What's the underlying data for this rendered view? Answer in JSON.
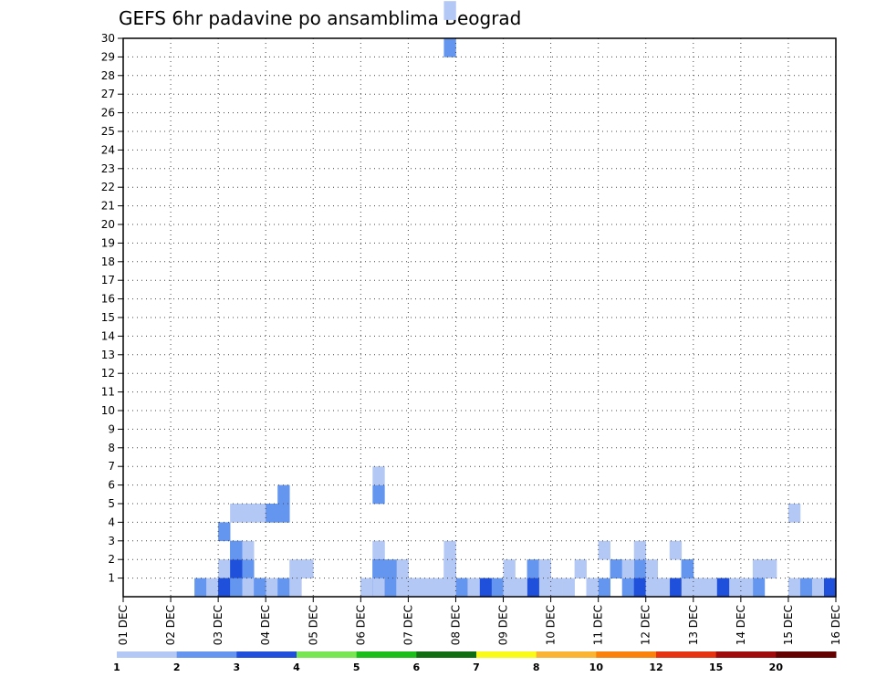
{
  "chart_data": {
    "type": "heatmap",
    "title": "GEFS 6hr padavine po ansamblima Beograd",
    "x_tick_labels": [
      "01 DEC",
      "02 DEC",
      "03 DEC",
      "04 DEC",
      "05 DEC",
      "06 DEC",
      "07 DEC",
      "08 DEC",
      "09 DEC",
      "10 DEC",
      "11 DEC",
      "12 DEC",
      "13 DEC",
      "14 DEC",
      "15 DEC",
      "16 DEC"
    ],
    "y_tick_labels": [
      "1",
      "2",
      "3",
      "4",
      "5",
      "6",
      "7",
      "8",
      "9",
      "10",
      "11",
      "12",
      "13",
      "14",
      "15",
      "16",
      "17",
      "18",
      "19",
      "20",
      "21",
      "22",
      "23",
      "24",
      "25",
      "26",
      "27",
      "28",
      "29",
      "30"
    ],
    "ensemble_range": [
      0,
      30
    ],
    "steps_per_day": 4,
    "grid": true,
    "legend": {
      "placement": "bottom",
      "labels": [
        "1",
        "2",
        "3",
        "4",
        "5",
        "6",
        "7",
        "8",
        "10",
        "12",
        "15",
        "20"
      ],
      "colors": [
        "#b4c8f5",
        "#6496f0",
        "#1e50dc",
        "#78e650",
        "#19be19",
        "#0f6e0f",
        "#fafa19",
        "#fab432",
        "#fa820a",
        "#e6320f",
        "#a00a0a",
        "#640000"
      ]
    },
    "cells": [
      [
        8,
        3,
        2
      ],
      [
        9,
        4,
        1
      ],
      [
        10,
        4,
        1
      ],
      [
        11,
        4,
        1
      ],
      [
        12,
        4,
        2
      ],
      [
        13,
        4,
        2
      ],
      [
        13,
        5,
        2
      ],
      [
        21,
        5,
        2
      ],
      [
        21,
        6,
        1
      ],
      [
        27,
        29,
        2
      ],
      [
        27,
        31,
        1
      ],
      [
        56,
        4,
        1
      ],
      [
        8,
        0,
        3
      ],
      [
        9,
        0,
        4
      ],
      [
        10,
        1,
        3
      ],
      [
        11,
        0,
        2
      ],
      [
        12,
        0,
        1
      ],
      [
        13,
        0,
        1
      ],
      [
        14,
        1,
        1
      ],
      [
        15,
        1,
        1
      ],
      [
        20,
        0,
        2
      ],
      [
        21,
        0,
        3
      ],
      [
        22,
        0,
        1
      ],
      [
        23,
        0,
        1
      ],
      [
        27,
        1,
        3
      ],
      [
        28,
        0,
        3
      ],
      [
        32,
        0,
        2
      ],
      [
        33,
        0,
        2
      ],
      [
        39,
        0,
        2
      ],
      [
        40,
        2,
        1
      ],
      [
        43,
        0,
        2
      ],
      [
        44,
        0,
        3
      ],
      [
        49,
        0,
        1
      ],
      [
        54,
        1,
        1
      ],
      [
        8,
        0,
        2
      ],
      [
        9,
        0,
        2
      ],
      [
        10,
        1,
        2
      ],
      [
        11,
        0,
        2
      ],
      [
        21,
        2,
        1
      ],
      [
        22,
        0,
        2
      ],
      [
        23,
        1,
        1
      ],
      [
        24,
        0,
        1
      ],
      [
        28,
        0,
        1
      ],
      [
        31,
        0,
        2
      ],
      [
        32,
        1,
        1
      ],
      [
        34,
        0,
        1
      ],
      [
        35,
        1,
        1
      ],
      [
        46,
        2,
        1
      ],
      [
        47,
        1,
        2
      ],
      [
        48,
        0,
        1
      ],
      [
        8,
        0,
        3
      ],
      [
        9,
        1,
        2
      ],
      [
        11,
        0,
        2
      ],
      [
        21,
        2,
        1
      ],
      [
        23,
        0,
        1
      ],
      [
        27,
        1,
        2
      ],
      [
        28,
        0,
        2
      ],
      [
        32,
        0,
        1
      ],
      [
        34,
        1,
        2
      ],
      [
        35,
        1,
        1
      ],
      [
        39,
        0,
        1
      ],
      [
        41,
        1,
        2
      ],
      [
        43,
        0,
        1
      ],
      [
        8,
        0,
        1
      ],
      [
        9,
        0,
        2
      ],
      [
        21,
        1,
        2
      ],
      [
        22,
        0,
        1
      ],
      [
        27,
        2,
        1
      ],
      [
        28,
        0,
        1
      ],
      [
        8,
        0,
        1
      ],
      [
        9,
        0,
        2
      ],
      [
        11,
        0,
        2
      ],
      [
        22,
        0,
        2
      ],
      [
        23,
        0,
        1
      ],
      [
        28,
        0,
        1
      ],
      [
        43,
        1,
        1
      ],
      [
        47,
        1,
        2
      ],
      [
        8,
        0,
        2
      ],
      [
        9,
        0,
        1
      ],
      [
        21,
        0,
        2
      ],
      [
        22,
        0,
        2
      ],
      [
        23,
        0,
        3
      ],
      [
        24,
        0,
        1
      ],
      [
        27,
        0,
        1
      ],
      [
        8,
        0,
        2
      ],
      [
        9,
        1,
        2
      ],
      [
        21,
        1,
        3
      ],
      [
        22,
        0,
        3
      ],
      [
        23,
        1,
        1
      ],
      [
        24,
        0,
        1
      ],
      [
        29,
        0,
        1
      ],
      [
        30,
        0,
        2
      ],
      [
        36,
        0,
        1
      ],
      [
        43,
        1,
        2
      ],
      [
        44,
        1,
        1
      ],
      [
        46,
        0,
        1
      ],
      [
        47,
        0,
        1
      ],
      [
        48,
        0,
        1
      ],
      [
        54,
        1,
        1
      ],
      [
        8,
        0,
        2
      ],
      [
        9,
        0,
        1
      ],
      [
        20,
        0,
        1
      ],
      [
        21,
        0,
        2
      ],
      [
        22,
        0,
        1
      ],
      [
        33,
        0,
        1
      ],
      [
        35,
        0,
        1
      ],
      [
        8,
        0,
        1
      ],
      [
        9,
        1,
        2
      ],
      [
        13,
        0,
        2
      ],
      [
        14,
        0,
        2
      ],
      [
        21,
        0,
        2
      ],
      [
        22,
        0,
        3
      ],
      [
        24,
        0,
        1
      ],
      [
        27,
        1,
        1
      ],
      [
        28,
        0,
        2
      ],
      [
        29,
        0,
        1
      ],
      [
        37,
        0,
        1
      ],
      [
        40,
        0,
        2
      ],
      [
        41,
        1,
        2
      ],
      [
        42,
        0,
        2
      ],
      [
        43,
        0,
        3
      ],
      [
        44,
        0,
        1
      ],
      [
        45,
        0,
        1
      ],
      [
        53,
        1,
        1
      ],
      [
        8,
        1,
        1
      ],
      [
        9,
        2,
        2
      ],
      [
        21,
        1,
        2
      ],
      [
        22,
        0,
        3
      ],
      [
        23,
        1,
        1
      ],
      [
        24,
        0,
        1
      ],
      [
        27,
        0,
        1
      ],
      [
        29,
        0,
        1
      ],
      [
        30,
        0,
        3
      ],
      [
        34,
        0,
        3
      ],
      [
        46,
        0,
        3
      ],
      [
        47,
        0,
        1
      ],
      [
        53,
        0,
        2
      ],
      [
        8,
        0,
        2
      ],
      [
        9,
        1,
        3
      ],
      [
        10,
        2,
        1
      ],
      [
        21,
        0,
        1
      ],
      [
        22,
        0,
        2
      ],
      [
        24,
        0,
        2
      ],
      [
        33,
        0,
        1
      ],
      [
        47,
        1,
        2
      ],
      [
        48,
        0,
        1
      ],
      [
        6,
        0,
        2
      ],
      [
        7,
        0,
        1
      ],
      [
        8,
        0,
        1
      ],
      [
        9,
        2,
        2
      ],
      [
        20,
        0,
        1
      ],
      [
        21,
        0,
        2
      ],
      [
        22,
        1,
        2
      ],
      [
        23,
        0,
        1
      ],
      [
        24,
        0,
        1
      ],
      [
        29,
        0,
        1
      ],
      [
        32,
        0,
        1
      ],
      [
        38,
        1,
        1
      ],
      [
        45,
        0,
        1
      ],
      [
        48,
        0,
        1
      ],
      [
        52,
        0,
        1
      ],
      [
        8,
        0,
        2
      ],
      [
        9,
        0,
        3
      ],
      [
        10,
        0,
        1
      ],
      [
        14,
        0,
        1
      ],
      [
        20,
        0,
        1
      ],
      [
        21,
        0,
        3
      ],
      [
        23,
        0,
        1
      ],
      [
        26,
        0,
        1
      ],
      [
        39,
        0,
        1
      ],
      [
        42,
        1,
        1
      ],
      [
        43,
        2,
        1
      ],
      [
        44,
        0,
        1
      ],
      [
        50,
        0,
        2
      ],
      [
        51,
        0,
        1
      ],
      [
        8,
        0,
        3
      ],
      [
        9,
        0,
        2
      ],
      [
        11,
        0,
        2
      ],
      [
        21,
        0,
        1
      ],
      [
        25,
        0,
        1
      ],
      [
        39,
        0,
        1
      ],
      [
        50,
        0,
        3
      ],
      [
        56,
        0,
        1
      ],
      [
        57,
        0,
        2
      ],
      [
        58,
        0,
        1
      ],
      [
        59,
        0,
        3
      ]
    ]
  }
}
